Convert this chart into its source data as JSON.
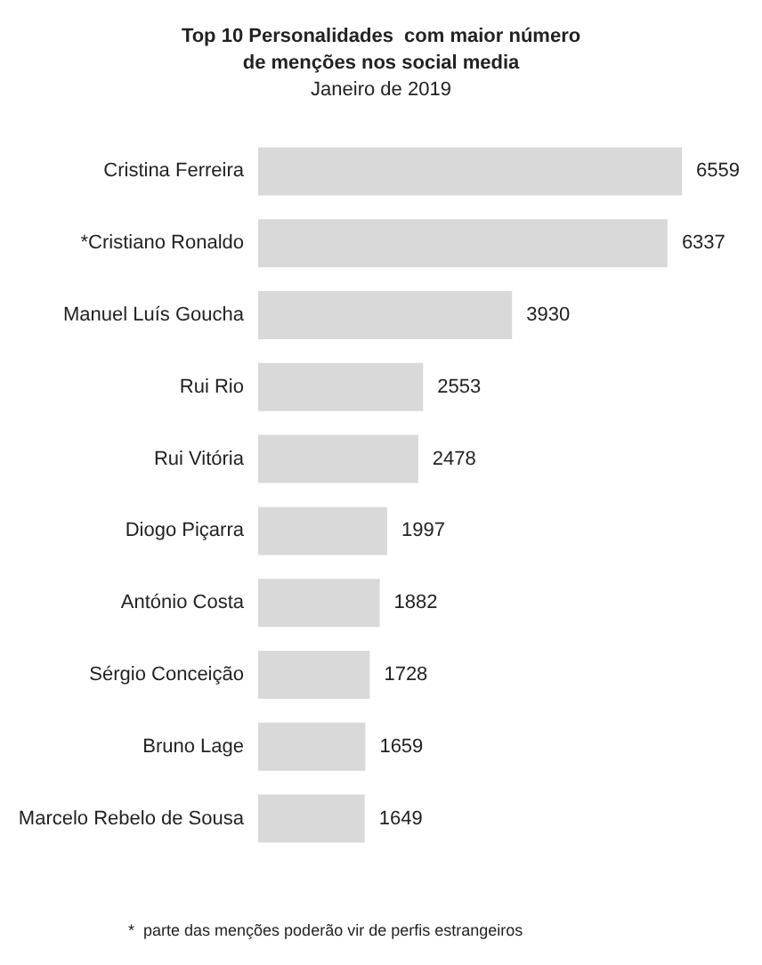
{
  "chart_data": {
    "type": "bar",
    "orientation": "horizontal",
    "title": "Top 10 Personalidades  com maior número\nde menções nos social media",
    "subtitle": "Janeiro de 2019",
    "categories": [
      "Cristina Ferreira",
      "*Cristiano Ronaldo",
      "Manuel Luís Goucha",
      "Rui Rio",
      "Rui Vitória",
      "Diogo Piçarra",
      "António Costa",
      "Sérgio Conceição",
      "Bruno Lage",
      "Marcelo Rebelo de Sousa"
    ],
    "values": [
      6559,
      6337,
      3930,
      2553,
      2478,
      1997,
      1882,
      1728,
      1659,
      1649
    ],
    "color": "#d9d9d9",
    "data_labels": true,
    "annotations": [
      "*  parte das menções poderão vir de perfis estrangeiros"
    ]
  }
}
